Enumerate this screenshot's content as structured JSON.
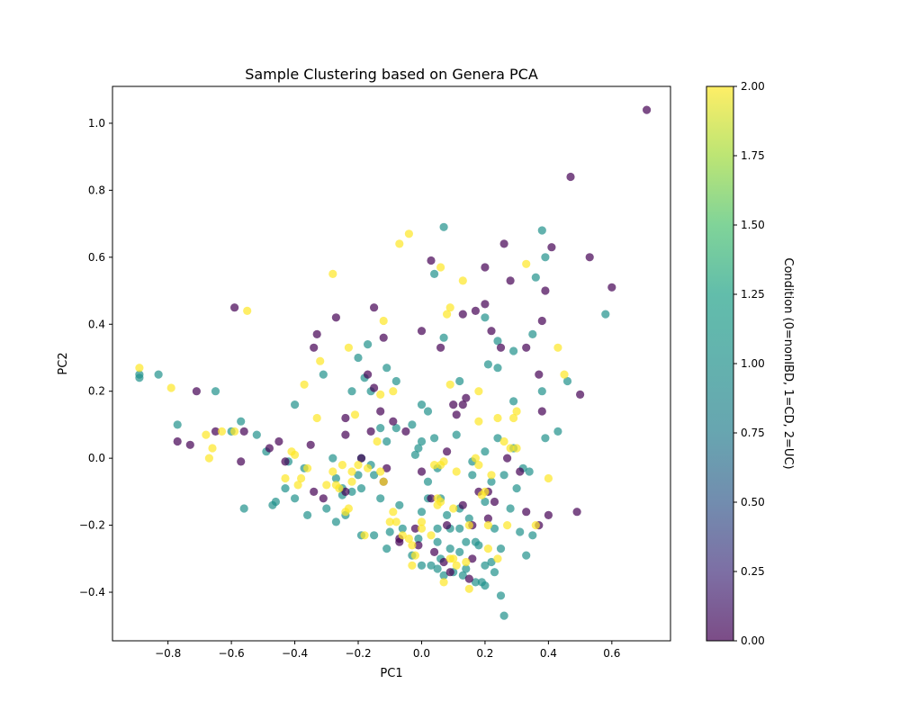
{
  "chart_data": {
    "type": "scatter",
    "title": "Sample Clustering based on Genera PCA",
    "xlabel": "PC1",
    "ylabel": "PC2",
    "xlim": [
      -0.975,
      0.785
    ],
    "ylim": [
      -0.545,
      1.11
    ],
    "xticks": [
      -0.8,
      -0.6,
      -0.4,
      -0.2,
      0.0,
      0.2,
      0.4,
      0.6
    ],
    "xtick_labels": [
      "−0.8",
      "−0.6",
      "−0.4",
      "−0.2",
      "0.0",
      "0.2",
      "0.4",
      "0.6"
    ],
    "yticks": [
      -0.4,
      -0.2,
      0.0,
      0.2,
      0.4,
      0.6,
      0.8,
      1.0
    ],
    "ytick_labels": [
      "−0.4",
      "−0.2",
      "0.0",
      "0.2",
      "0.4",
      "0.6",
      "0.8",
      "1.0"
    ],
    "grid": false,
    "colormap": "viridis",
    "marker_alpha": 0.7,
    "colorbar": {
      "label": "Condition (0=nonIBD, 1=CD, 2=UC)",
      "range": [
        0,
        2
      ],
      "ticks": [
        0.0,
        0.25,
        0.5,
        0.75,
        1.0,
        1.25,
        1.5,
        1.75,
        2.0
      ],
      "tick_labels": [
        "0.00",
        "0.25",
        "0.50",
        "0.75",
        "1.00",
        "1.25",
        "1.50",
        "1.75",
        "2.00"
      ]
    },
    "condition_colors": [
      "#440154",
      "#21918c",
      "#fde725"
    ],
    "points_nonIBD": [
      [
        0.71,
        1.04
      ],
      [
        0.47,
        0.84
      ],
      [
        0.53,
        0.6
      ],
      [
        0.6,
        0.51
      ],
      [
        0.41,
        0.63
      ],
      [
        0.26,
        0.64
      ],
      [
        0.03,
        0.59
      ],
      [
        0.2,
        0.57
      ],
      [
        0.28,
        0.53
      ],
      [
        0.39,
        0.5
      ],
      [
        0.2,
        0.46
      ],
      [
        0.17,
        0.44
      ],
      [
        0.13,
        0.43
      ],
      [
        -0.59,
        0.45
      ],
      [
        -0.15,
        0.45
      ],
      [
        -0.27,
        0.42
      ],
      [
        -0.33,
        0.37
      ],
      [
        0.0,
        0.38
      ],
      [
        0.22,
        0.38
      ],
      [
        0.38,
        0.41
      ],
      [
        -0.12,
        0.36
      ],
      [
        0.06,
        0.33
      ],
      [
        0.25,
        0.33
      ],
      [
        0.33,
        0.33
      ],
      [
        -0.34,
        0.33
      ],
      [
        0.37,
        0.25
      ],
      [
        0.5,
        0.19
      ],
      [
        -0.17,
        0.25
      ],
      [
        -0.71,
        0.2
      ],
      [
        -0.15,
        0.21
      ],
      [
        0.14,
        0.18
      ],
      [
        0.1,
        0.16
      ],
      [
        0.13,
        0.16
      ],
      [
        -0.13,
        0.14
      ],
      [
        -0.24,
        0.12
      ],
      [
        0.11,
        0.13
      ],
      [
        0.38,
        0.14
      ],
      [
        -0.09,
        0.11
      ],
      [
        -0.65,
        0.08
      ],
      [
        -0.56,
        0.08
      ],
      [
        -0.77,
        0.05
      ],
      [
        -0.73,
        0.04
      ],
      [
        -0.45,
        0.05
      ],
      [
        -0.48,
        0.03
      ],
      [
        -0.35,
        0.04
      ],
      [
        -0.24,
        0.07
      ],
      [
        -0.16,
        0.08
      ],
      [
        -0.05,
        0.08
      ],
      [
        -0.57,
        -0.01
      ],
      [
        -0.43,
        -0.01
      ],
      [
        -0.19,
        0.0
      ],
      [
        -0.11,
        -0.03
      ],
      [
        0.08,
        0.02
      ],
      [
        0.27,
        0.0
      ],
      [
        0.31,
        -0.04
      ],
      [
        0.0,
        -0.04
      ],
      [
        -0.12,
        -0.07
      ],
      [
        -0.34,
        -0.1
      ],
      [
        -0.31,
        -0.12
      ],
      [
        -0.24,
        -0.1
      ],
      [
        0.21,
        -0.1
      ],
      [
        0.18,
        -0.1
      ],
      [
        0.03,
        -0.12
      ],
      [
        0.13,
        -0.14
      ],
      [
        0.23,
        -0.13
      ],
      [
        0.33,
        -0.16
      ],
      [
        0.49,
        -0.16
      ],
      [
        0.4,
        -0.17
      ],
      [
        0.37,
        -0.2
      ],
      [
        0.16,
        -0.2
      ],
      [
        0.21,
        -0.18
      ],
      [
        0.08,
        -0.2
      ],
      [
        -0.02,
        -0.21
      ],
      [
        -0.07,
        -0.24
      ],
      [
        -0.01,
        -0.26
      ],
      [
        -0.07,
        -0.25
      ],
      [
        0.04,
        -0.28
      ],
      [
        0.16,
        -0.3
      ],
      [
        0.07,
        -0.31
      ],
      [
        0.09,
        -0.34
      ],
      [
        0.15,
        -0.36
      ]
    ],
    "points_CD": [
      [
        0.07,
        0.69
      ],
      [
        0.38,
        0.68
      ],
      [
        0.39,
        0.6
      ],
      [
        0.04,
        0.55
      ],
      [
        0.36,
        0.54
      ],
      [
        0.58,
        0.43
      ],
      [
        0.24,
        0.35
      ],
      [
        0.29,
        0.32
      ],
      [
        0.35,
        0.37
      ],
      [
        0.2,
        0.42
      ],
      [
        -0.17,
        0.34
      ],
      [
        0.07,
        0.36
      ],
      [
        0.21,
        0.28
      ],
      [
        -0.2,
        0.3
      ],
      [
        -0.11,
        0.27
      ],
      [
        0.24,
        0.27
      ],
      [
        0.12,
        0.23
      ],
      [
        0.46,
        0.23
      ],
      [
        -0.31,
        0.25
      ],
      [
        -0.18,
        0.24
      ],
      [
        -0.89,
        0.25
      ],
      [
        -0.83,
        0.25
      ],
      [
        -0.89,
        0.24
      ],
      [
        -0.65,
        0.2
      ],
      [
        -0.22,
        0.2
      ],
      [
        -0.16,
        0.2
      ],
      [
        -0.08,
        0.23
      ],
      [
        0.0,
        0.16
      ],
      [
        0.29,
        0.17
      ],
      [
        0.38,
        0.2
      ],
      [
        -0.4,
        0.16
      ],
      [
        -0.57,
        0.11
      ],
      [
        -0.77,
        0.1
      ],
      [
        -0.13,
        0.09
      ],
      [
        -0.03,
        0.1
      ],
      [
        -0.08,
        0.09
      ],
      [
        0.02,
        0.14
      ],
      [
        0.11,
        0.07
      ],
      [
        0.24,
        0.06
      ],
      [
        0.43,
        0.08
      ],
      [
        -0.52,
        0.07
      ],
      [
        -0.49,
        0.02
      ],
      [
        -0.6,
        0.08
      ],
      [
        -0.11,
        0.05
      ],
      [
        0.04,
        0.06
      ],
      [
        -0.19,
        0.0
      ],
      [
        -0.28,
        0.0
      ],
      [
        0.2,
        0.02
      ],
      [
        0.29,
        0.03
      ],
      [
        0.39,
        0.06
      ],
      [
        -0.01,
        0.03
      ],
      [
        0.0,
        0.05
      ],
      [
        -0.02,
        0.01
      ],
      [
        -0.16,
        -0.02
      ],
      [
        -0.42,
        -0.01
      ],
      [
        -0.37,
        -0.03
      ],
      [
        -0.27,
        -0.06
      ],
      [
        -0.2,
        -0.05
      ],
      [
        -0.15,
        -0.05
      ],
      [
        0.05,
        -0.03
      ],
      [
        0.16,
        -0.01
      ],
      [
        0.16,
        -0.05
      ],
      [
        0.26,
        -0.05
      ],
      [
        0.32,
        -0.03
      ],
      [
        0.34,
        -0.04
      ],
      [
        0.02,
        -0.07
      ],
      [
        -0.43,
        -0.09
      ],
      [
        -0.4,
        -0.12
      ],
      [
        -0.46,
        -0.13
      ],
      [
        -0.25,
        -0.09
      ],
      [
        -0.25,
        -0.11
      ],
      [
        -0.22,
        -0.1
      ],
      [
        -0.19,
        -0.09
      ],
      [
        -0.13,
        -0.12
      ],
      [
        0.02,
        -0.12
      ],
      [
        0.06,
        -0.12
      ],
      [
        0.08,
        -0.17
      ],
      [
        0.12,
        -0.15
      ],
      [
        0.22,
        -0.07
      ],
      [
        0.3,
        -0.09
      ],
      [
        0.2,
        -0.13
      ],
      [
        0.28,
        -0.15
      ],
      [
        -0.56,
        -0.15
      ],
      [
        -0.47,
        -0.14
      ],
      [
        -0.3,
        -0.15
      ],
      [
        -0.24,
        -0.17
      ],
      [
        -0.27,
        -0.19
      ],
      [
        -0.36,
        -0.17
      ],
      [
        -0.19,
        -0.23
      ],
      [
        -0.15,
        -0.23
      ],
      [
        -0.1,
        -0.22
      ],
      [
        -0.07,
        -0.14
      ],
      [
        0.0,
        -0.16
      ],
      [
        -0.01,
        -0.24
      ],
      [
        -0.06,
        -0.21
      ],
      [
        0.05,
        -0.21
      ],
      [
        0.09,
        -0.21
      ],
      [
        0.12,
        -0.21
      ],
      [
        0.15,
        -0.18
      ],
      [
        0.23,
        -0.21
      ],
      [
        0.31,
        -0.22
      ],
      [
        0.35,
        -0.23
      ],
      [
        -0.11,
        -0.27
      ],
      [
        -0.03,
        -0.29
      ],
      [
        0.05,
        -0.25
      ],
      [
        0.09,
        -0.27
      ],
      [
        0.14,
        -0.25
      ],
      [
        0.12,
        -0.28
      ],
      [
        0.17,
        -0.25
      ],
      [
        0.18,
        -0.26
      ],
      [
        0.25,
        -0.27
      ],
      [
        0.33,
        -0.29
      ],
      [
        0.0,
        -0.32
      ],
      [
        0.03,
        -0.32
      ],
      [
        0.05,
        -0.33
      ],
      [
        0.07,
        -0.35
      ],
      [
        0.1,
        -0.34
      ],
      [
        0.13,
        -0.35
      ],
      [
        0.17,
        -0.37
      ],
      [
        0.19,
        -0.37
      ],
      [
        0.2,
        -0.38
      ],
      [
        0.23,
        -0.34
      ],
      [
        0.25,
        -0.41
      ],
      [
        0.26,
        -0.47
      ],
      [
        0.2,
        -0.32
      ],
      [
        0.14,
        -0.33
      ],
      [
        0.06,
        -0.3
      ],
      [
        0.22,
        -0.31
      ]
    ],
    "points_UC": [
      [
        -0.04,
        0.67
      ],
      [
        -0.07,
        0.64
      ],
      [
        0.33,
        0.58
      ],
      [
        0.06,
        0.57
      ],
      [
        -0.28,
        0.55
      ],
      [
        0.13,
        0.53
      ],
      [
        -0.55,
        0.44
      ],
      [
        0.09,
        0.45
      ],
      [
        0.08,
        0.43
      ],
      [
        -0.12,
        0.41
      ],
      [
        -0.23,
        0.33
      ],
      [
        0.43,
        0.33
      ],
      [
        -0.32,
        0.29
      ],
      [
        0.45,
        0.25
      ],
      [
        -0.89,
        0.27
      ],
      [
        -0.79,
        0.21
      ],
      [
        -0.37,
        0.22
      ],
      [
        0.09,
        0.22
      ],
      [
        0.18,
        0.2
      ],
      [
        -0.13,
        0.19
      ],
      [
        -0.09,
        0.2
      ],
      [
        0.3,
        0.14
      ],
      [
        0.29,
        0.12
      ],
      [
        -0.33,
        0.12
      ],
      [
        0.24,
        0.12
      ],
      [
        -0.21,
        0.13
      ],
      [
        0.18,
        0.11
      ],
      [
        -0.63,
        0.08
      ],
      [
        -0.68,
        0.07
      ],
      [
        -0.66,
        0.03
      ],
      [
        -0.67,
        0.0
      ],
      [
        -0.59,
        0.08
      ],
      [
        -0.14,
        0.05
      ],
      [
        0.26,
        0.05
      ],
      [
        0.3,
        0.03
      ],
      [
        0.28,
        0.03
      ],
      [
        -0.4,
        0.01
      ],
      [
        -0.41,
        0.02
      ],
      [
        0.07,
        -0.01
      ],
      [
        0.17,
        0.0
      ],
      [
        0.18,
        -0.02
      ],
      [
        0.4,
        -0.06
      ],
      [
        -0.36,
        -0.03
      ],
      [
        -0.28,
        -0.04
      ],
      [
        -0.25,
        -0.02
      ],
      [
        -0.38,
        -0.06
      ],
      [
        -0.39,
        -0.08
      ],
      [
        -0.43,
        -0.06
      ],
      [
        -0.2,
        -0.02
      ],
      [
        -0.22,
        -0.04
      ],
      [
        -0.17,
        -0.03
      ],
      [
        -0.13,
        -0.04
      ],
      [
        -0.12,
        -0.07
      ],
      [
        0.04,
        -0.02
      ],
      [
        0.06,
        -0.02
      ],
      [
        0.11,
        -0.04
      ],
      [
        0.22,
        -0.05
      ],
      [
        -0.3,
        -0.08
      ],
      [
        -0.27,
        -0.08
      ],
      [
        -0.26,
        -0.09
      ],
      [
        -0.22,
        -0.07
      ],
      [
        0.2,
        -0.1
      ],
      [
        0.19,
        -0.11
      ],
      [
        0.06,
        -0.13
      ],
      [
        0.05,
        -0.12
      ],
      [
        -0.23,
        -0.15
      ],
      [
        -0.24,
        -0.16
      ],
      [
        -0.18,
        -0.23
      ],
      [
        -0.09,
        -0.16
      ],
      [
        -0.08,
        -0.19
      ],
      [
        -0.1,
        -0.19
      ],
      [
        0.05,
        -0.14
      ],
      [
        0.1,
        -0.15
      ],
      [
        0.15,
        -0.2
      ],
      [
        0.21,
        -0.2
      ],
      [
        0.27,
        -0.2
      ],
      [
        0.36,
        -0.2
      ],
      [
        0.0,
        -0.19
      ],
      [
        0.0,
        -0.21
      ],
      [
        0.03,
        -0.23
      ],
      [
        -0.04,
        -0.24
      ],
      [
        -0.06,
        -0.23
      ],
      [
        -0.03,
        -0.26
      ],
      [
        0.21,
        -0.27
      ],
      [
        0.24,
        -0.3
      ],
      [
        0.1,
        -0.3
      ],
      [
        0.09,
        -0.3
      ],
      [
        0.11,
        -0.32
      ],
      [
        0.14,
        -0.31
      ],
      [
        -0.02,
        -0.29
      ],
      [
        -0.03,
        -0.32
      ],
      [
        0.07,
        -0.37
      ],
      [
        0.15,
        -0.39
      ]
    ]
  }
}
